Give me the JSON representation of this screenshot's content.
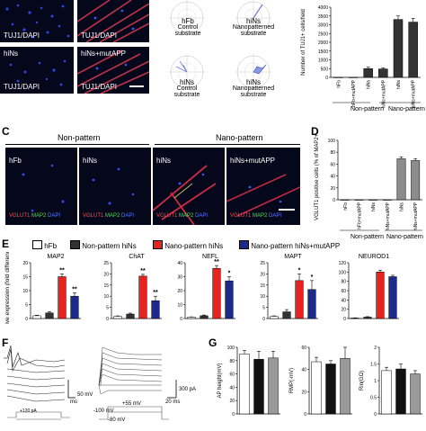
{
  "panelA": {
    "images": [
      {
        "tl": "",
        "bl": "TUJ1/DAPI"
      },
      {
        "tl": "",
        "bl": "TUJ1/DAPI"
      },
      {
        "tl": "hiNs",
        "bl": "TUJ1/DAPI"
      },
      {
        "tl": "hiNs+mutAPP",
        "bl": "TUJ1/DAPI"
      }
    ]
  },
  "panelB": {
    "polars": [
      {
        "title_lines": [
          "hFb",
          "Control",
          "substrate"
        ]
      },
      {
        "title_lines": [
          "hiNs",
          "Nanopatterned",
          "substrate"
        ]
      },
      {
        "title_lines": [
          "hiNs",
          "Control",
          "substrate"
        ]
      },
      {
        "title_lines": [
          "hiNs",
          "Nanopatterned",
          "substrate"
        ]
      }
    ]
  },
  "panelTuj": {
    "chart_data": {
      "type": "bar",
      "ylabel": "Number of TUJ1+ cells/field",
      "ylim": [
        0,
        4000
      ],
      "yticks": [
        "0",
        "500",
        "1000",
        "1500",
        "2000",
        "2500",
        "3000",
        "3500",
        "4000"
      ],
      "categories": [
        "hFb",
        "hFb+mutAPP",
        "hiNs",
        "hiNs+mutAPP",
        "hiNs",
        "hiNs+mutAPP"
      ],
      "values": [
        5,
        5,
        500,
        480,
        3300,
        3150
      ],
      "errors": [
        0,
        0,
        80,
        60,
        200,
        220
      ],
      "groups": [
        "Non-pattern",
        "Nano-pattern"
      ]
    }
  },
  "panelC": {
    "label": "C",
    "header_left": "Non-pattern",
    "header_right": "Nano-pattern",
    "images": [
      {
        "tl": "hFb"
      },
      {
        "tl": "hiNs"
      },
      {
        "tl": "hiNs"
      },
      {
        "tl": "hiNs+mutAPP"
      }
    ],
    "stain": {
      "vglut": "VGLUT1",
      "map2": "MAP2",
      "dapi": "DAPI"
    }
  },
  "panelD": {
    "label": "D",
    "chart_data": {
      "type": "bar",
      "ylabel": "VGLUT1 positive cells (% of MAP2+ cells)",
      "ylim": [
        0,
        100
      ],
      "yticks": [
        "0",
        "20",
        "40",
        "60",
        "80",
        "100"
      ],
      "categories": [
        "hFb",
        "hFb+mutAPP",
        "hiNs",
        "hiNs+mutAPP",
        "hiNs",
        "hiNs+mutAPP"
      ],
      "values": [
        0,
        0,
        0,
        0,
        69,
        66
      ],
      "errors": [
        0,
        0,
        0,
        0,
        3,
        3
      ],
      "groups": [
        "Non-pattern",
        "Nano-pattern"
      ]
    }
  },
  "panelE": {
    "label": "E",
    "legend": [
      {
        "name": "hFb",
        "color": "#ffffff"
      },
      {
        "name": "Non-pattern hiNs",
        "color": "#333333"
      },
      {
        "name": "Nano-pattern hiNs",
        "color": "#e8221f"
      },
      {
        "name": "Nano-pattern hiNs+mutAPP",
        "color": "#1b2a8c"
      }
    ],
    "ylabel": "Relative expression (fold difference)",
    "chart_data": [
      {
        "type": "bar",
        "title": "MAP2",
        "ylim": [
          0,
          20
        ],
        "yticks": [
          "0",
          "5",
          "10",
          "15",
          "20"
        ],
        "values": [
          1,
          2,
          15,
          8
        ],
        "errors": [
          0.2,
          0.5,
          1,
          1.2
        ],
        "stars": [
          "",
          "",
          "**",
          "**"
        ]
      },
      {
        "type": "bar",
        "title": "ChAT",
        "ylim": [
          0,
          25
        ],
        "yticks": [
          "0",
          "5",
          "10",
          "15",
          "20",
          "25"
        ],
        "values": [
          1,
          2,
          19,
          8
        ],
        "errors": [
          0.2,
          0.4,
          0.8,
          2
        ],
        "stars": [
          "",
          "",
          "**",
          "**"
        ]
      },
      {
        "type": "bar",
        "title": "NEFL",
        "ylim": [
          0,
          40
        ],
        "yticks": [
          "0",
          "10",
          "20",
          "30",
          "40"
        ],
        "values": [
          1,
          2,
          36,
          27
        ],
        "errors": [
          0.2,
          0.5,
          2,
          3
        ],
        "stars": [
          "",
          "",
          "**",
          "*"
        ]
      },
      {
        "type": "bar",
        "title": "MAPT",
        "ylim": [
          0,
          25
        ],
        "yticks": [
          "0",
          "5",
          "10",
          "15",
          "20",
          "25"
        ],
        "values": [
          1,
          3,
          17,
          13
        ],
        "errors": [
          0.2,
          1,
          3,
          4
        ],
        "stars": [
          "",
          "",
          "*",
          "*"
        ]
      },
      {
        "type": "bar",
        "title": "NEUROD1",
        "ylim": [
          0,
          120
        ],
        "yticks": [
          "0",
          "20",
          "40",
          "60",
          "80",
          "100",
          "120"
        ],
        "values": [
          1,
          3,
          100,
          90
        ],
        "errors": [
          0.5,
          1,
          4,
          3
        ],
        "stars": [
          "",
          "",
          "",
          ""
        ]
      }
    ]
  },
  "panelF": {
    "label": "F",
    "scale1_v": "50 mV",
    "scale1_t": "ms",
    "stim": "+120 pA",
    "v_top": "+55 mV",
    "v_bot1": "-100 mV",
    "v_bot2": "-80 mV",
    "scale2": "300 pA",
    "scale2_t": "20 ms"
  },
  "panelG": {
    "label": "G",
    "chart_data": [
      {
        "type": "bar",
        "ylabel": "AP height(mV)",
        "ylim": [
          0,
          100
        ],
        "yticks": [
          "0",
          "20",
          "40",
          "60",
          "80",
          "100"
        ],
        "values": [
          90,
          82,
          84
        ],
        "errors": [
          5,
          12,
          10
        ]
      },
      {
        "type": "bar",
        "ylabel": "RMP(-mV)",
        "ylim": [
          0,
          60
        ],
        "yticks": [
          "0",
          "20",
          "40",
          "60"
        ],
        "values": [
          47,
          45,
          50
        ],
        "errors": [
          4,
          3,
          10
        ]
      },
      {
        "type": "bar",
        "ylabel": "Rin(GΩ)",
        "ylim": [
          0,
          2
        ],
        "yticks": [
          "0",
          "0.5",
          "1",
          "1.5",
          "2"
        ],
        "values": [
          1.3,
          1.35,
          1.2
        ],
        "errors": [
          0.1,
          0.15,
          0.1
        ]
      }
    ],
    "colors": [
      "#ffffff",
      "#111111",
      "#9a9a9a"
    ]
  }
}
